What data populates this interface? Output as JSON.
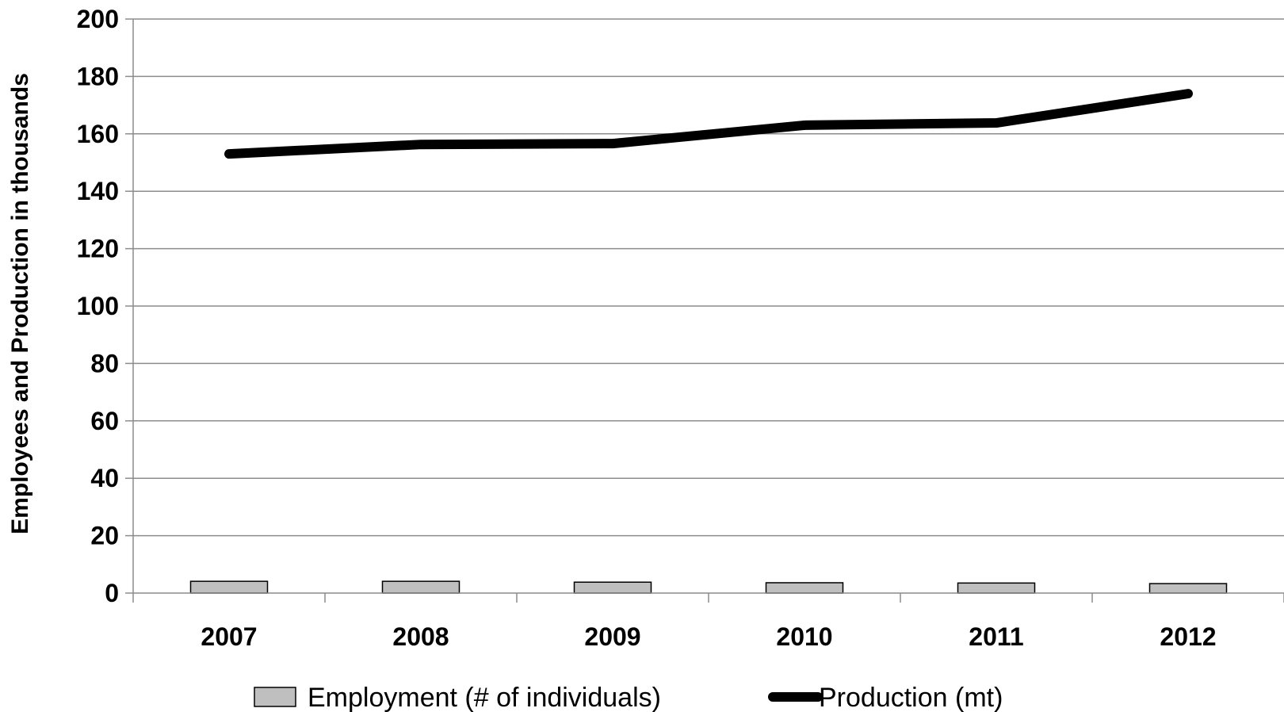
{
  "chart_data": {
    "type": "bar",
    "categories": [
      "2007",
      "2008",
      "2009",
      "2010",
      "2011",
      "2012"
    ],
    "series": [
      {
        "name": "Employment (# of individuals)",
        "type": "bar",
        "values": [
          4.1,
          4.1,
          3.8,
          3.6,
          3.5,
          3.3
        ],
        "color": "#bfbfbf"
      },
      {
        "name": "Production (mt)",
        "type": "line",
        "values": [
          153,
          156.3,
          156.6,
          163,
          163.8,
          174
        ],
        "color": "#000000"
      }
    ],
    "title": "",
    "xlabel": "",
    "ylabel": "Employees and Production in thousands",
    "ylim": [
      0,
      200
    ],
    "yticks": [
      "0",
      "20",
      "40",
      "60",
      "80",
      "100",
      "120",
      "140",
      "160",
      "180",
      "200"
    ],
    "grid": true,
    "legend_position": "bottom"
  }
}
